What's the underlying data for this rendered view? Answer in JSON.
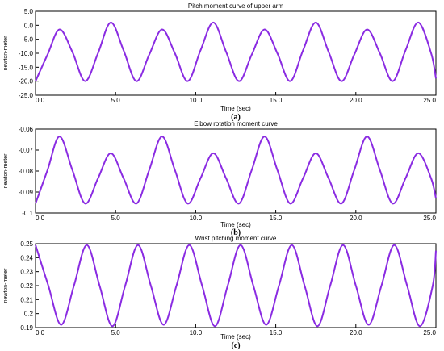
{
  "style": {
    "line_color": "#8a2be2",
    "axis_color": "#000000"
  },
  "chart_data": [
    {
      "type": "line",
      "title": "Pitch moment curve of upper arm",
      "xlabel": "Time (sec)",
      "ylabel": "newton-meter",
      "caption": "(a)",
      "xlim": [
        0,
        25
      ],
      "ylim": [
        -25,
        5
      ],
      "x_ticks": [
        "0.0",
        "5.0",
        "10.0",
        "15.0",
        "20.0",
        "25.0"
      ],
      "x_tick_values": [
        0,
        5,
        10,
        15,
        20,
        25
      ],
      "y_ticks": [
        "5.0",
        "0.0",
        "-5.0",
        "-10.0",
        "-15.0",
        "-20.0",
        "-25.0"
      ],
      "y_tick_values": [
        5,
        0,
        -5,
        -10,
        -15,
        -20,
        -25
      ],
      "grid": false,
      "series": [
        {
          "x": [
            0,
            0.75,
            1.5,
            2.3,
            3.1,
            3.9,
            4.7,
            5.5,
            6.3,
            7.1,
            7.9,
            8.7,
            9.5,
            10.3,
            11.1,
            11.9,
            12.7,
            13.5,
            14.3,
            15.1,
            15.9,
            16.7,
            17.5,
            18.3,
            19.1,
            19.9,
            20.7,
            21.5,
            22.3,
            23.1,
            23.9,
            24.7,
            25.0
          ],
          "y": [
            -20.0,
            -10.5,
            -1.5,
            -9.5,
            -20.0,
            -10.0,
            1.0,
            -9.0,
            -20.0,
            -10.5,
            -1.5,
            -10.0,
            -20.0,
            -9.0,
            1.0,
            -9.5,
            -20.0,
            -10.5,
            -1.5,
            -10.0,
            -20.0,
            -9.0,
            1.0,
            -9.5,
            -20.0,
            -10.5,
            -1.5,
            -10.0,
            -20.0,
            -9.0,
            1.0,
            -10.0,
            -19.0
          ]
        }
      ]
    },
    {
      "type": "line",
      "title": "Elbow rotation moment curve",
      "xlabel": "Time (sec)",
      "ylabel": "newton-meter",
      "caption": "(b)",
      "xlim": [
        0,
        25
      ],
      "ylim": [
        -0.1,
        -0.06
      ],
      "x_ticks": [
        "0.0",
        "5.0",
        "10.0",
        "15.0",
        "20.0",
        "25.0"
      ],
      "x_tick_values": [
        0,
        5,
        10,
        15,
        20,
        25
      ],
      "y_ticks": [
        "-0.06",
        "-0.07",
        "-0.08",
        "-0.09",
        "-0.1"
      ],
      "y_tick_values": [
        -0.06,
        -0.07,
        -0.08,
        -0.09,
        -0.1
      ],
      "grid": false,
      "series": [
        {
          "x": [
            0,
            0.75,
            1.5,
            2.3,
            3.1,
            3.9,
            4.7,
            5.5,
            6.3,
            7.1,
            7.9,
            8.7,
            9.5,
            10.3,
            11.1,
            11.9,
            12.7,
            13.5,
            14.3,
            15.1,
            15.9,
            16.7,
            17.5,
            18.3,
            19.1,
            19.9,
            20.7,
            21.5,
            22.3,
            23.1,
            23.9,
            24.7,
            25.0
          ],
          "y": [
            -0.0955,
            -0.0795,
            -0.0635,
            -0.0795,
            -0.0955,
            -0.0835,
            -0.0715,
            -0.0835,
            -0.0955,
            -0.0795,
            -0.0635,
            -0.0795,
            -0.0955,
            -0.0835,
            -0.0715,
            -0.0835,
            -0.0955,
            -0.0795,
            -0.0635,
            -0.0795,
            -0.0955,
            -0.0835,
            -0.0715,
            -0.0835,
            -0.0955,
            -0.0795,
            -0.0635,
            -0.0795,
            -0.0955,
            -0.0835,
            -0.0715,
            -0.0835,
            -0.093
          ]
        }
      ]
    },
    {
      "type": "line",
      "title": "Wrist pitching moment curve",
      "xlabel": "Time (sec)",
      "ylabel": "newton-meter",
      "caption": "(c)",
      "xlim": [
        0,
        25
      ],
      "ylim": [
        0.19,
        0.25
      ],
      "x_ticks": [
        "0.0",
        "5.0",
        "10.0",
        "15.0",
        "20.0",
        "25.0"
      ],
      "x_tick_values": [
        0,
        5,
        10,
        15,
        20,
        25
      ],
      "y_ticks": [
        "0.25",
        "0.24",
        "0.23",
        "0.22",
        "0.21",
        "0.2",
        "0.19"
      ],
      "y_tick_values": [
        0.25,
        0.24,
        0.23,
        0.22,
        0.21,
        0.2,
        0.19
      ],
      "grid": false,
      "series": [
        {
          "x": [
            0,
            0.8,
            1.6,
            2.4,
            3.2,
            4.0,
            4.8,
            5.6,
            6.4,
            7.2,
            8.0,
            8.8,
            9.6,
            10.4,
            11.2,
            12.0,
            12.8,
            13.6,
            14.4,
            15.2,
            16.0,
            16.8,
            17.6,
            18.4,
            19.2,
            20.0,
            20.8,
            21.6,
            22.4,
            23.2,
            24.0,
            24.8,
            25.0
          ],
          "y": [
            0.249,
            0.22,
            0.192,
            0.22,
            0.249,
            0.22,
            0.191,
            0.22,
            0.249,
            0.22,
            0.192,
            0.22,
            0.249,
            0.22,
            0.191,
            0.22,
            0.249,
            0.22,
            0.192,
            0.22,
            0.249,
            0.22,
            0.191,
            0.22,
            0.249,
            0.22,
            0.192,
            0.22,
            0.249,
            0.22,
            0.191,
            0.22,
            0.245
          ]
        }
      ]
    }
  ]
}
